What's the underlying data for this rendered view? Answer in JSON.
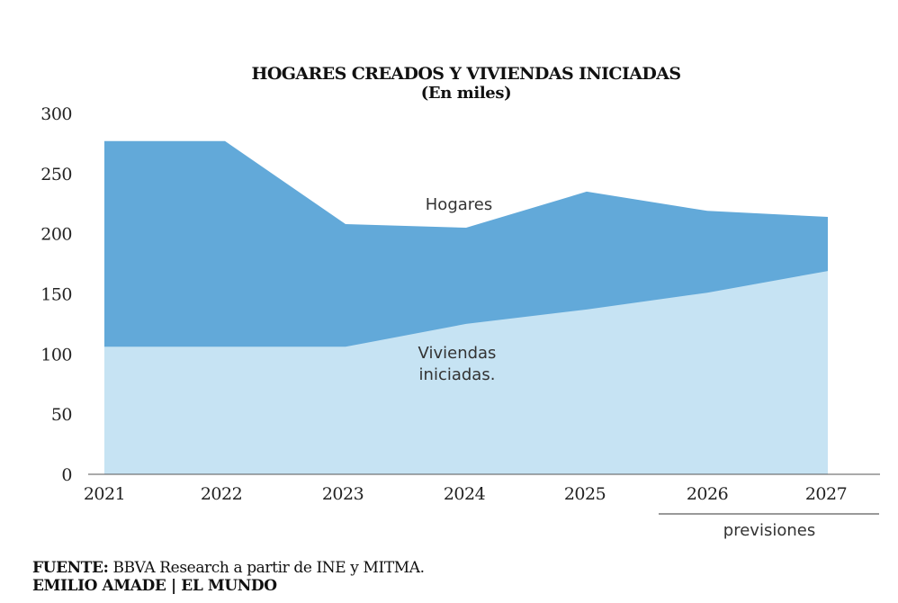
{
  "chart_data": {
    "type": "area",
    "title": "HOGARES CREADOS Y VIVIENDAS INICIADAS",
    "subtitle": "(En miles)",
    "x": [
      "2021",
      "2022",
      "2023",
      "2024",
      "2025",
      "2026",
      "2027"
    ],
    "ylim": [
      0,
      300
    ],
    "yticks": [
      "0",
      "50",
      "100",
      "150",
      "200",
      "250",
      "300"
    ],
    "grid": false,
    "series": [
      {
        "name": "Hogares",
        "values": [
          277,
          277,
          208,
          205,
          235,
          219,
          214
        ],
        "color": "#62a9d9"
      },
      {
        "name": "Viviendas iniciadas.",
        "values": [
          106,
          106,
          106,
          125,
          137,
          151,
          169
        ],
        "color": "#c6e3f3"
      }
    ],
    "labels": {
      "hogares": "Hogares",
      "viviendas_line1": "Viviendas",
      "viviendas_line2": "iniciadas."
    },
    "forecast_label": "previsiones",
    "forecast_years": [
      "2026",
      "2027"
    ]
  },
  "footer": {
    "source_prefix": "FUENTE:",
    "source_text": " BBVA Research a partir de INE y MITMA.",
    "credit": "EMILIO AMADE | EL MUNDO"
  }
}
